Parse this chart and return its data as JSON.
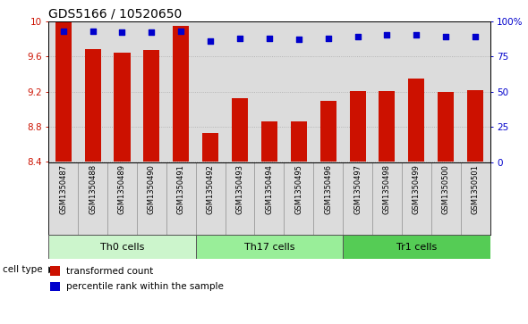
{
  "title": "GDS5166 / 10520650",
  "samples": [
    "GSM1350487",
    "GSM1350488",
    "GSM1350489",
    "GSM1350490",
    "GSM1350491",
    "GSM1350492",
    "GSM1350493",
    "GSM1350494",
    "GSM1350495",
    "GSM1350496",
    "GSM1350497",
    "GSM1350498",
    "GSM1350499",
    "GSM1350500",
    "GSM1350501"
  ],
  "transformed_counts": [
    10.0,
    9.68,
    9.64,
    9.67,
    9.95,
    8.73,
    9.12,
    8.86,
    8.86,
    9.09,
    9.21,
    9.21,
    9.35,
    9.2,
    9.22
  ],
  "percentile_ranks": [
    93,
    93,
    92,
    92,
    93,
    86,
    88,
    88,
    87,
    88,
    89,
    90,
    90,
    89,
    89
  ],
  "bar_color": "#cc1100",
  "dot_color": "#0000cc",
  "ylim_left": [
    8.4,
    10.0
  ],
  "ylim_right": [
    0,
    100
  ],
  "yticks_left": [
    8.4,
    8.8,
    9.2,
    9.6,
    10.0
  ],
  "ytick_labels_left": [
    "8.4",
    "8.8",
    "9.2",
    "9.6",
    "10"
  ],
  "yticks_right": [
    0,
    25,
    50,
    75,
    100
  ],
  "ytick_labels_right": [
    "0",
    "25",
    "50",
    "75",
    "100%"
  ],
  "groups": [
    {
      "label": "Th0 cells",
      "start": 0,
      "end": 5,
      "color": "#ccf5cc"
    },
    {
      "label": "Th17 cells",
      "start": 5,
      "end": 10,
      "color": "#99ee99"
    },
    {
      "label": "Tr1 cells",
      "start": 10,
      "end": 15,
      "color": "#55cc55"
    }
  ],
  "cell_type_label": "cell type",
  "legend_items": [
    {
      "label": "transformed count",
      "color": "#cc1100"
    },
    {
      "label": "percentile rank within the sample",
      "color": "#0000cc"
    }
  ],
  "bg_color": "#dcdcdc",
  "plot_bg_color": "#ffffff",
  "grid_color": "#aaaaaa",
  "title_fontsize": 10,
  "tick_fontsize": 7.5,
  "bar_width": 0.55
}
